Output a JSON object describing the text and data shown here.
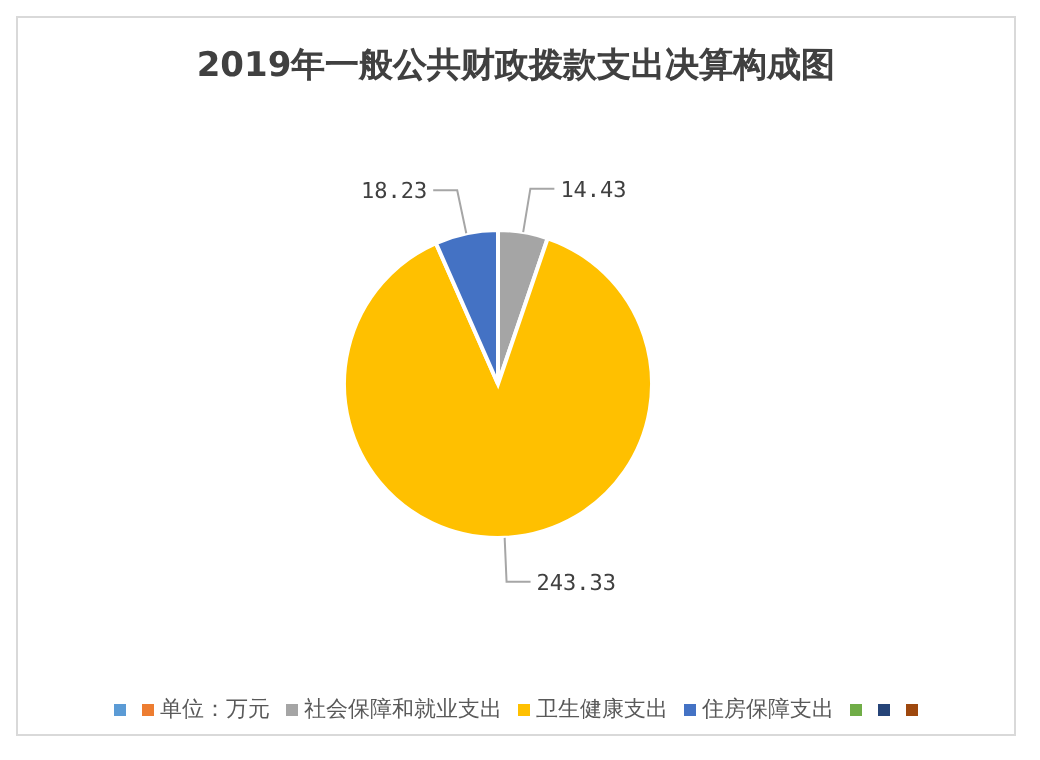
{
  "chart_data": {
    "type": "pie",
    "title": "2019年一般公共财政拨款支出决算构成图",
    "categories": [
      null,
      "单位：万元",
      "社会保障和就业支出",
      "卫生健康支出",
      "住房保障支出",
      null,
      null,
      null
    ],
    "values": [
      0,
      0,
      14.43,
      243.33,
      18.23,
      0,
      0,
      0
    ],
    "value_labels": [
      null,
      null,
      "14.43",
      "243.33",
      "18.23",
      null,
      null,
      null
    ],
    "colors": [
      "#5b9bd5",
      "#ed7d31",
      "#a5a5a5",
      "#ffc000",
      "#4472c4",
      "#70ad47",
      "#264478",
      "#9e480e"
    ],
    "legend": "bottom"
  }
}
